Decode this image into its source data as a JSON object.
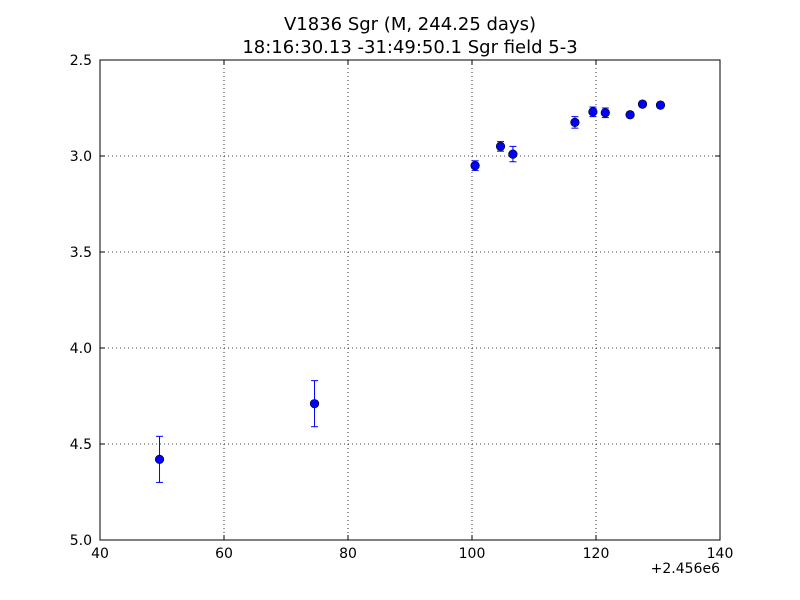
{
  "chart_data": {
    "type": "scatter",
    "title_line1": "V1836 Sgr  (M, 244.25 days)",
    "title_line2": "18:16:30.13 -31:49:50.1 Sgr field 5-3",
    "xlabel": "",
    "ylabel": "",
    "x_offset_label": "+2.456e6",
    "xlim": [
      40,
      140
    ],
    "ylim": [
      2.5,
      5.0
    ],
    "y_inverted": true,
    "grid": true,
    "x_ticks": [
      40,
      60,
      80,
      100,
      120,
      140
    ],
    "x_tick_labels": [
      "40",
      "60",
      "80",
      "100",
      "120",
      "140"
    ],
    "y_ticks": [
      2.5,
      3.0,
      3.5,
      4.0,
      4.5,
      5.0
    ],
    "y_tick_labels": [
      "2.5",
      "3.0",
      "3.5",
      "4.0",
      "4.5",
      "5.0"
    ],
    "marker_color": "#0000ff",
    "points": [
      {
        "x": 49.6,
        "y": 4.58,
        "err": 0.12
      },
      {
        "x": 74.6,
        "y": 4.29,
        "err": 0.12
      },
      {
        "x": 100.5,
        "y": 3.05,
        "err": 0.025
      },
      {
        "x": 104.6,
        "y": 2.95,
        "err": 0.025
      },
      {
        "x": 106.6,
        "y": 2.99,
        "err": 0.04
      },
      {
        "x": 116.6,
        "y": 2.825,
        "err": 0.03
      },
      {
        "x": 119.5,
        "y": 2.77,
        "err": 0.025
      },
      {
        "x": 121.5,
        "y": 2.775,
        "err": 0.025
      },
      {
        "x": 125.5,
        "y": 2.785,
        "err": 0.015
      },
      {
        "x": 127.5,
        "y": 2.73,
        "err": 0.015
      },
      {
        "x": 130.4,
        "y": 2.735,
        "err": 0.015
      }
    ]
  }
}
